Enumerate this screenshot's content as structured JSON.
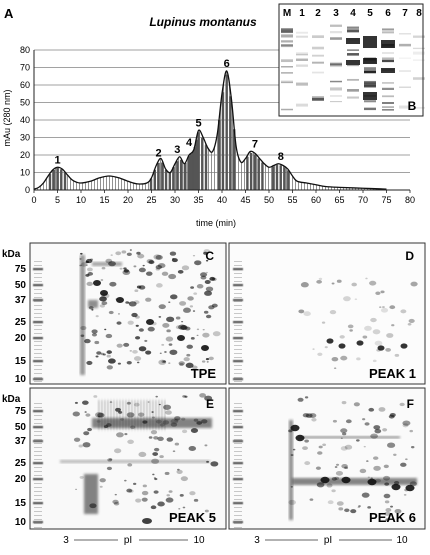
{
  "figure": {
    "panel_A": {
      "letter": "A",
      "title": "Lupinus montanus",
      "ylabel": "mAu (280 nm)",
      "xlabel": "time (min)"
    },
    "panel_B": {
      "letter": "B",
      "lanes": [
        "M",
        "1",
        "2",
        "3",
        "4",
        "5",
        "6",
        "7",
        "8"
      ]
    },
    "gels": [
      {
        "letter": "C",
        "label": "TPE"
      },
      {
        "letter": "D",
        "label": "PEAK 1"
      },
      {
        "letter": "E",
        "label": "PEAK 5"
      },
      {
        "letter": "F",
        "label": "PEAK 6"
      }
    ],
    "mw_unit": "kDa",
    "mw_ticks_top": [
      "75",
      "50",
      "37",
      "25",
      "20",
      "15",
      "10"
    ],
    "mw_ticks_bottom": [
      "75",
      "50",
      "37",
      "25",
      "20",
      "15",
      "10"
    ],
    "pi_axis": {
      "start": "3",
      "label": "pI",
      "end": "10"
    }
  },
  "chart_data": {
    "type": "area",
    "title": "Lupinus montanus",
    "xlabel": "time (min)",
    "ylabel": "mAu (280 nm)",
    "xlim": [
      0,
      80
    ],
    "ylim": [
      0,
      80
    ],
    "xticks": [
      0,
      5,
      10,
      15,
      20,
      25,
      30,
      35,
      40,
      45,
      50,
      55,
      60,
      65,
      70,
      75,
      80
    ],
    "yticks": [
      0,
      10,
      20,
      30,
      40,
      50,
      60,
      70,
      80
    ],
    "grid": "horizontal",
    "x": [
      0,
      1,
      2,
      3,
      4,
      5,
      6,
      7,
      8,
      9,
      10,
      12,
      14,
      16,
      18,
      20,
      22,
      24,
      25,
      26,
      27,
      28,
      29,
      30,
      31,
      32,
      33,
      34,
      35,
      36,
      37,
      38,
      39,
      40,
      41,
      42,
      43,
      44,
      45,
      46,
      47,
      48,
      49,
      50,
      51,
      52,
      53,
      54,
      55,
      56,
      58,
      60,
      62,
      65,
      70,
      75
    ],
    "y": [
      0.5,
      1.5,
      4,
      8,
      11.5,
      13,
      12,
      9,
      6,
      4.5,
      4,
      5,
      7,
      8,
      7,
      5,
      3.5,
      4,
      7,
      14,
      18,
      12,
      10,
      15,
      19,
      15,
      20,
      23,
      34,
      30,
      24,
      22,
      32,
      55,
      68,
      52,
      25,
      16,
      18,
      22,
      21,
      18,
      15,
      13,
      14,
      15,
      14,
      12,
      8,
      5,
      4,
      3,
      2,
      1.5,
      1,
      0.5
    ],
    "peaks": [
      {
        "label": "1",
        "x": 5,
        "y": 13
      },
      {
        "label": "2",
        "x": 26.5,
        "y": 17
      },
      {
        "label": "3",
        "x": 30.5,
        "y": 19
      },
      {
        "label": "4",
        "x": 33,
        "y": 23
      },
      {
        "label": "5",
        "x": 35,
        "y": 34
      },
      {
        "label": "6",
        "x": 41,
        "y": 68
      },
      {
        "label": "7",
        "x": 47,
        "y": 22
      },
      {
        "label": "8",
        "x": 52.5,
        "y": 15
      }
    ]
  }
}
